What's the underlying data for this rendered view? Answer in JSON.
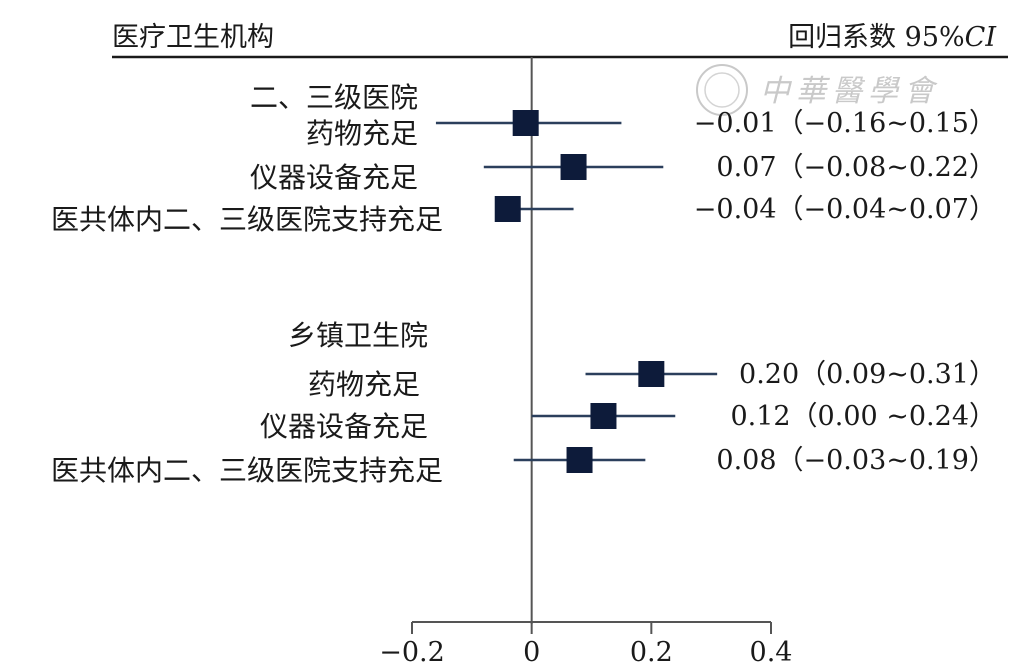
{
  "header": {
    "left_label": "医疗卫生机构",
    "right_label_prefix": "回归系数 95%",
    "right_label_ci": "CI"
  },
  "watermark": {
    "text": "中華醫學會"
  },
  "chart_data": {
    "type": "forest",
    "reference_line": 0,
    "xlim": [
      -0.2,
      0.4
    ],
    "xticks": [
      -0.2,
      0,
      0.2,
      0.4
    ],
    "xtick_labels": [
      "−0.2",
      "0",
      "0.2",
      "0.4"
    ],
    "groups": [
      {
        "name": "二、三级医院",
        "rows": [
          {
            "label": "药物充足",
            "estimate": -0.01,
            "lower": -0.16,
            "upper": 0.15,
            "ci_text": "−0.01（−0.16~0.15）"
          },
          {
            "label": "仪器设备充足",
            "estimate": 0.07,
            "lower": -0.08,
            "upper": 0.22,
            "ci_text": "0.07（−0.08~0.22）"
          },
          {
            "label": "医共体内二、三级医院支持充足",
            "estimate": -0.04,
            "lower": -0.04,
            "upper": 0.07,
            "ci_text": "−0.04（−0.04~0.07）"
          }
        ]
      },
      {
        "name": "乡镇卫生院",
        "rows": [
          {
            "label": "药物充足",
            "estimate": 0.2,
            "lower": 0.09,
            "upper": 0.31,
            "ci_text": "0.20（0.09~0.31）"
          },
          {
            "label": "仪器设备充足",
            "estimate": 0.12,
            "lower": 0.0,
            "upper": 0.24,
            "ci_text": "0.12（0.00 ~0.24）"
          },
          {
            "label": "医共体内二、三级医院支持充足",
            "estimate": 0.08,
            "lower": -0.03,
            "upper": 0.19,
            "ci_text": "0.08（−0.03~0.19）"
          }
        ]
      }
    ],
    "colors": {
      "marker": "#0d1b3a",
      "ci_line": "#2b3f5c",
      "axis": "#555555"
    }
  }
}
